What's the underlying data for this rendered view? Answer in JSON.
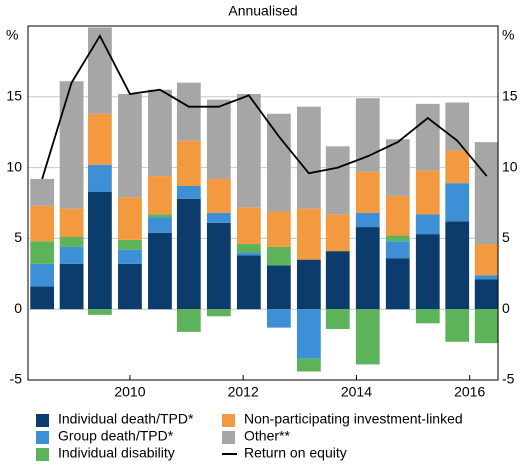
{
  "chart_data": {
    "type": "bar",
    "subtitle": "Annualised",
    "y_unit": "%",
    "stacked": true,
    "x": [
      2008.45,
      2008.97,
      2009.47,
      2010.0,
      2010.53,
      2011.04,
      2011.57,
      2012.1,
      2012.63,
      2013.16,
      2013.67,
      2014.2,
      2014.73,
      2015.26,
      2015.78,
      2016.3
    ],
    "xlim": [
      2008.2,
      2016.5
    ],
    "xticks": [
      2010,
      2012,
      2014,
      2016
    ],
    "ylim": [
      -5,
      20
    ],
    "yticks": [
      -5,
      0,
      5,
      10,
      15
    ],
    "grid": true,
    "series": [
      {
        "name": "Individual death/TPD*",
        "color": "#0b3c6b",
        "values": [
          1.6,
          3.2,
          8.3,
          3.2,
          5.4,
          7.8,
          6.1,
          3.8,
          3.1,
          3.5,
          4.1,
          5.8,
          3.6,
          5.3,
          6.2,
          2.1
        ]
      },
      {
        "name": "Group death/TPD*",
        "color": "#3d8fd6",
        "values": [
          1.6,
          1.2,
          1.9,
          1.0,
          1.1,
          0.9,
          0.7,
          0.2,
          -1.3,
          -3.5,
          0,
          1.0,
          1.2,
          1.4,
          2.7,
          0.3
        ]
      },
      {
        "name": "Individual disability",
        "color": "#5db35a",
        "values": [
          1.6,
          0.7,
          -0.4,
          0.7,
          0.2,
          -1.6,
          -0.5,
          0.6,
          1.3,
          -0.9,
          -1.4,
          -3.9,
          0.4,
          -1.0,
          -2.3,
          -2.4
        ]
      },
      {
        "name": "Non-participating investment-linked",
        "color": "#f3993f",
        "values": [
          2.5,
          2.0,
          3.6,
          3.0,
          2.7,
          3.2,
          2.4,
          2.6,
          2.5,
          3.6,
          2.6,
          2.9,
          2.8,
          3.1,
          2.3,
          2.2
        ]
      },
      {
        "name": "Other**",
        "color": "#a6a6a6",
        "values": [
          1.9,
          9.0,
          6.1,
          7.3,
          6.1,
          4.1,
          5.6,
          8.0,
          6.9,
          7.2,
          4.8,
          5.2,
          4.0,
          4.7,
          3.4,
          7.2
        ]
      },
      {
        "name": "Return on equity",
        "color": "#000000",
        "kind": "line",
        "values": [
          9.2,
          16.0,
          19.3,
          15.2,
          15.5,
          14.3,
          14.3,
          15.1,
          12.2,
          9.6,
          10.0,
          10.8,
          11.8,
          13.5,
          11.9,
          9.4
        ]
      }
    ]
  }
}
